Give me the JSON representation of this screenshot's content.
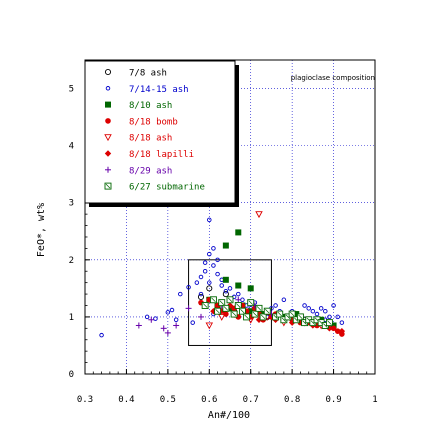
{
  "chart_data": {
    "type": "scatter",
    "title": "",
    "annotation": "plagioclase composition",
    "xlabel": "An#/100",
    "ylabel": "FeO*, wt%",
    "xlim": [
      0.3,
      1.0
    ],
    "ylim": [
      0,
      5.5
    ],
    "xticks": [
      "0.3",
      "0.4",
      "0.5",
      "0.6",
      "0.7",
      "0.8",
      "0.9",
      "1"
    ],
    "yticks": [
      "0",
      "1",
      "2",
      "3",
      "4",
      "5"
    ],
    "grid": true,
    "legend_position": "top-left",
    "box": {
      "x": [
        0.55,
        0.75
      ],
      "y": [
        0.5,
        2.0
      ]
    },
    "series": [
      {
        "name": "7/8 ash",
        "marker": "open-circle-large",
        "color": "#000000",
        "points": [
          [
            0.58,
            1.35
          ],
          [
            0.62,
            1.2
          ],
          [
            0.66,
            1.1
          ],
          [
            0.7,
            1.05
          ],
          [
            0.74,
            1.0
          ],
          [
            0.78,
            1.0
          ],
          [
            0.83,
            0.95
          ],
          [
            0.6,
            1.5
          ],
          [
            0.64,
            1.4
          ]
        ]
      },
      {
        "name": "7/14-15 ash",
        "marker": "open-circle-small",
        "color": "#0000cc",
        "points": [
          [
            0.34,
            0.68
          ],
          [
            0.45,
            1.0
          ],
          [
            0.47,
            0.97
          ],
          [
            0.5,
            1.08
          ],
          [
            0.51,
            1.12
          ],
          [
            0.52,
            0.95
          ],
          [
            0.53,
            1.4
          ],
          [
            0.55,
            1.52
          ],
          [
            0.56,
            0.9
          ],
          [
            0.57,
            1.6
          ],
          [
            0.58,
            1.7
          ],
          [
            0.58,
            1.4
          ],
          [
            0.59,
            1.8
          ],
          [
            0.59,
            1.95
          ],
          [
            0.6,
            2.1
          ],
          [
            0.6,
            1.6
          ],
          [
            0.6,
            2.7
          ],
          [
            0.61,
            2.2
          ],
          [
            0.61,
            1.9
          ],
          [
            0.62,
            1.75
          ],
          [
            0.62,
            2.0
          ],
          [
            0.63,
            1.55
          ],
          [
            0.63,
            1.65
          ],
          [
            0.64,
            1.45
          ],
          [
            0.65,
            1.5
          ],
          [
            0.66,
            1.35
          ],
          [
            0.67,
            1.4
          ],
          [
            0.68,
            1.3
          ],
          [
            0.69,
            1.2
          ],
          [
            0.7,
            1.15
          ],
          [
            0.71,
            1.25
          ],
          [
            0.72,
            1.1
          ],
          [
            0.73,
            1.05
          ],
          [
            0.74,
            1.0
          ],
          [
            0.75,
            1.15
          ],
          [
            0.76,
            1.2
          ],
          [
            0.77,
            1.1
          ],
          [
            0.78,
            1.3
          ],
          [
            0.79,
            1.0
          ],
          [
            0.8,
            1.1
          ],
          [
            0.81,
            1.0
          ],
          [
            0.82,
            0.95
          ],
          [
            0.83,
            1.2
          ],
          [
            0.84,
            1.15
          ],
          [
            0.85,
            1.1
          ],
          [
            0.86,
            1.05
          ],
          [
            0.87,
            1.15
          ],
          [
            0.88,
            1.1
          ],
          [
            0.89,
            1.0
          ],
          [
            0.9,
            1.2
          ],
          [
            0.91,
            1.0
          ],
          [
            0.92,
            0.9
          ],
          [
            0.9,
            0.85
          ],
          [
            0.88,
            0.95
          ],
          [
            0.61,
            1.05
          ],
          [
            0.65,
            1.2
          ],
          [
            0.69,
            1.0
          ]
        ]
      },
      {
        "name": "8/10 ash",
        "marker": "filled-square",
        "color": "#006600",
        "points": [
          [
            0.64,
            2.25
          ],
          [
            0.67,
            2.48
          ],
          [
            0.64,
            1.65
          ],
          [
            0.67,
            1.55
          ],
          [
            0.7,
            1.5
          ],
          [
            0.6,
            1.3
          ],
          [
            0.62,
            1.2
          ],
          [
            0.65,
            1.15
          ],
          [
            0.68,
            1.2
          ],
          [
            0.7,
            1.1
          ],
          [
            0.73,
            1.05
          ],
          [
            0.78,
            1.0
          ],
          [
            0.81,
            1.05
          ],
          [
            0.84,
            0.95
          ],
          [
            0.87,
            0.95
          ],
          [
            0.9,
            0.85
          ]
        ]
      },
      {
        "name": "8/18 bomb",
        "marker": "filled-circle",
        "color": "#dd0000",
        "points": [
          [
            0.58,
            1.25
          ],
          [
            0.6,
            1.3
          ],
          [
            0.62,
            1.2
          ],
          [
            0.63,
            1.1
          ],
          [
            0.64,
            1.05
          ],
          [
            0.66,
            1.15
          ],
          [
            0.67,
            1.0
          ],
          [
            0.68,
            1.2
          ],
          [
            0.69,
            1.1
          ],
          [
            0.7,
            1.0
          ],
          [
            0.71,
            1.15
          ],
          [
            0.72,
            1.05
          ],
          [
            0.73,
            0.95
          ],
          [
            0.74,
            1.1
          ],
          [
            0.75,
            1.0
          ],
          [
            0.76,
            1.05
          ],
          [
            0.78,
            0.95
          ],
          [
            0.79,
            1.0
          ],
          [
            0.8,
            0.95
          ],
          [
            0.82,
            0.9
          ],
          [
            0.84,
            0.9
          ],
          [
            0.86,
            0.85
          ],
          [
            0.88,
            0.85
          ],
          [
            0.9,
            0.8
          ],
          [
            0.91,
            0.75
          ],
          [
            0.92,
            0.7
          ]
        ]
      },
      {
        "name": "8/18 ash",
        "marker": "open-triangle-down",
        "color": "#dd0000",
        "points": [
          [
            0.72,
            2.8
          ],
          [
            0.6,
            0.85
          ],
          [
            0.63,
            1.0
          ],
          [
            0.66,
            1.05
          ],
          [
            0.7,
            0.95
          ],
          [
            0.74,
            1.0
          ],
          [
            0.78,
            0.9
          ],
          [
            0.83,
            0.9
          ],
          [
            0.87,
            0.85
          ]
        ]
      },
      {
        "name": "8/18 lapilli",
        "marker": "filled-diamond",
        "color": "#dd0000",
        "points": [
          [
            0.61,
            1.1
          ],
          [
            0.65,
            1.2
          ],
          [
            0.69,
            1.05
          ],
          [
            0.72,
            0.95
          ],
          [
            0.76,
            0.95
          ],
          [
            0.8,
            0.9
          ],
          [
            0.85,
            0.85
          ],
          [
            0.89,
            0.8
          ],
          [
            0.92,
            0.75
          ]
        ]
      },
      {
        "name": "8/29 ash",
        "marker": "plus",
        "color": "#6600aa",
        "points": [
          [
            0.43,
            0.85
          ],
          [
            0.46,
            0.95
          ],
          [
            0.49,
            0.8
          ],
          [
            0.5,
            0.72
          ],
          [
            0.52,
            0.85
          ],
          [
            0.55,
            1.15
          ],
          [
            0.58,
            1.0
          ],
          [
            0.63,
            1.2
          ],
          [
            0.67,
            1.3
          ],
          [
            0.71,
            1.2
          ],
          [
            0.75,
            1.05
          ]
        ]
      },
      {
        "name": "6/27 submarine",
        "marker": "open-square-x",
        "color": "#006600",
        "points": [
          [
            0.59,
            1.2
          ],
          [
            0.61,
            1.3
          ],
          [
            0.62,
            1.1
          ],
          [
            0.63,
            1.25
          ],
          [
            0.64,
            1.15
          ],
          [
            0.65,
            1.3
          ],
          [
            0.66,
            1.05
          ],
          [
            0.67,
            1.2
          ],
          [
            0.68,
            1.1
          ],
          [
            0.69,
            1.0
          ],
          [
            0.7,
            1.25
          ],
          [
            0.71,
            1.05
          ],
          [
            0.72,
            1.15
          ],
          [
            0.73,
            1.0
          ],
          [
            0.74,
            1.1
          ],
          [
            0.76,
            1.0
          ],
          [
            0.77,
            1.05
          ],
          [
            0.78,
            0.95
          ],
          [
            0.79,
            1.0
          ],
          [
            0.8,
            1.05
          ],
          [
            0.81,
            0.95
          ],
          [
            0.82,
            1.0
          ],
          [
            0.83,
            0.9
          ],
          [
            0.84,
            0.95
          ],
          [
            0.85,
            0.9
          ],
          [
            0.86,
            0.95
          ],
          [
            0.87,
            0.9
          ],
          [
            0.88,
            0.85
          ],
          [
            0.89,
            0.9
          ]
        ]
      }
    ]
  }
}
